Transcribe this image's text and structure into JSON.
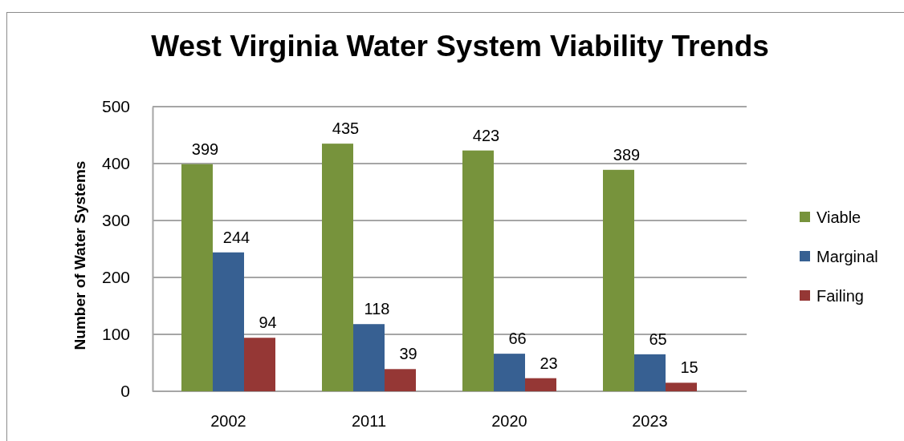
{
  "chart_data": {
    "type": "bar",
    "title": "West Virginia Water System Viability Trends",
    "ylabel": "Number of Water Systems",
    "categories": [
      "2002",
      "2011",
      "2020",
      "2023"
    ],
    "series": [
      {
        "name": "Viable",
        "color": "#77933c",
        "values": [
          399,
          435,
          423,
          389
        ]
      },
      {
        "name": "Marginal",
        "color": "#376092",
        "values": [
          244,
          118,
          66,
          65
        ]
      },
      {
        "name": "Failing",
        "color": "#953735",
        "values": [
          94,
          39,
          23,
          15
        ]
      }
    ],
    "ylim": [
      0,
      500
    ],
    "yticks": [
      0,
      100,
      200,
      300,
      400,
      500
    ],
    "grid": "y",
    "legend": "right",
    "data_labels": true
  }
}
